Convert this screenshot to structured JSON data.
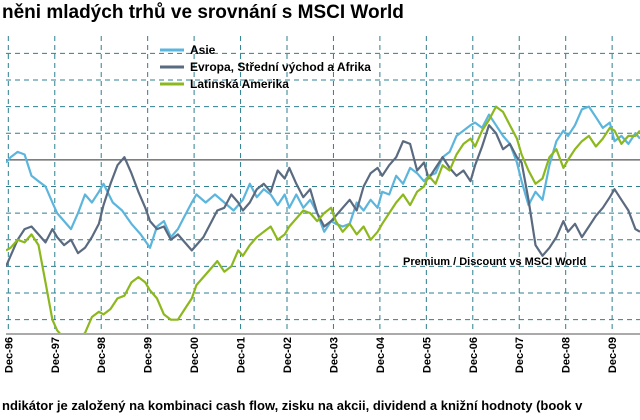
{
  "title": "něni mladých trhů ve srovnání s MSCI World",
  "footnote": "ndikátor je založený na kombinaci cash flow, zisku na akcii, dividend a knižní hodnoty (book v",
  "chart_data": {
    "type": "line",
    "annotation": "Premium / Discount vs MSCI World",
    "x_tick_labels": [
      "Dec-96",
      "Dec-97",
      "Dec-98",
      "Dec-99",
      "Dec-00",
      "Dec-01",
      "Dec-02",
      "Dec-03",
      "Dec-04",
      "Dec-05",
      "Dec-06",
      "Dec-07",
      "Dec-08",
      "Dec-09"
    ],
    "xlim": [
      1996.9,
      2010.55
    ],
    "ylim": [
      -6.5,
      4.5
    ],
    "baseline": 0,
    "grid": true,
    "legend_position": "top-left",
    "series": [
      {
        "name": "Asie",
        "color": "#5bb5dc",
        "x": [
          1996.9,
          1997.0,
          1997.15,
          1997.3,
          1997.45,
          1997.6,
          1997.75,
          1997.9,
          1998.0,
          1998.15,
          1998.3,
          1998.45,
          1998.6,
          1998.75,
          1998.9,
          1999.0,
          1999.2,
          1999.4,
          1999.6,
          1999.8,
          2000.0,
          2000.15,
          2000.3,
          2000.45,
          2000.6,
          2000.75,
          2000.9,
          2001.0,
          2001.2,
          2001.4,
          2001.6,
          2001.8,
          2002.0,
          2002.15,
          2002.3,
          2002.45,
          2002.6,
          2002.75,
          2002.9,
          2003.0,
          2003.15,
          2003.3,
          2003.45,
          2003.6,
          2003.75,
          2003.9,
          2004.0,
          2004.15,
          2004.3,
          2004.45,
          2004.6,
          2004.75,
          2004.9,
          2005.0,
          2005.15,
          2005.3,
          2005.45,
          2005.6,
          2005.75,
          2005.9,
          2006.0,
          2006.15,
          2006.3,
          2006.45,
          2006.6,
          2006.75,
          2006.9,
          2007.0,
          2007.15,
          2007.3,
          2007.45,
          2007.6,
          2007.75,
          2007.9,
          2008.0,
          2008.15,
          2008.3,
          2008.45,
          2008.6,
          2008.75,
          2008.9,
          2009.0,
          2009.15,
          2009.3,
          2009.45,
          2009.6,
          2009.75,
          2009.9,
          2010.0,
          2010.15,
          2010.3,
          2010.45,
          2010.55
        ],
        "values": [
          -0.1,
          0.1,
          0.3,
          0.2,
          -0.6,
          -0.8,
          -1.0,
          -1.6,
          -2.0,
          -2.3,
          -2.6,
          -2.0,
          -1.3,
          -1.6,
          -1.2,
          -0.9,
          -1.6,
          -1.9,
          -2.4,
          -2.8,
          -3.3,
          -2.5,
          -2.3,
          -2.9,
          -2.6,
          -2.1,
          -1.6,
          -1.3,
          -1.6,
          -1.3,
          -1.6,
          -1.9,
          -1.5,
          -0.9,
          -1.4,
          -1.1,
          -1.3,
          -1.7,
          -1.3,
          -1.8,
          -1.3,
          -1.8,
          -1.5,
          -2.0,
          -2.7,
          -2.3,
          -2.4,
          -2.5,
          -2.4,
          -1.6,
          -1.9,
          -1.5,
          -1.8,
          -1.2,
          -1.3,
          -0.6,
          -0.9,
          -0.3,
          -0.5,
          -0.8,
          -0.6,
          -0.5,
          0.1,
          0.3,
          0.9,
          1.1,
          1.3,
          1.4,
          1.2,
          1.7,
          1.3,
          0.9,
          0.6,
          -0.1,
          -0.8,
          -1.7,
          -1.2,
          -1.5,
          -0.2,
          0.7,
          1.1,
          0.9,
          1.3,
          1.9,
          2.0,
          1.6,
          1.2,
          1.4,
          0.7,
          0.9,
          0.6,
          1.0,
          0.8
        ]
      },
      {
        "name": "Evropa, Střední východ a Afrika",
        "color": "#5a6a80",
        "x": [
          1996.9,
          1997.0,
          1997.15,
          1997.3,
          1997.45,
          1997.6,
          1997.75,
          1997.9,
          1998.0,
          1998.15,
          1998.3,
          1998.45,
          1998.6,
          1998.75,
          1998.9,
          1999.0,
          1999.15,
          1999.3,
          1999.45,
          1999.6,
          1999.75,
          1999.9,
          2000.0,
          2000.15,
          2000.3,
          2000.45,
          2000.6,
          2000.75,
          2000.9,
          2001.0,
          2001.15,
          2001.3,
          2001.45,
          2001.6,
          2001.75,
          2001.9,
          2002.0,
          2002.15,
          2002.3,
          2002.45,
          2002.6,
          2002.75,
          2002.9,
          2003.0,
          2003.15,
          2003.3,
          2003.45,
          2003.6,
          2003.75,
          2003.9,
          2004.0,
          2004.15,
          2004.3,
          2004.45,
          2004.6,
          2004.75,
          2004.9,
          2005.0,
          2005.15,
          2005.3,
          2005.45,
          2005.6,
          2005.75,
          2005.9,
          2006.0,
          2006.15,
          2006.3,
          2006.45,
          2006.6,
          2006.75,
          2006.9,
          2007.0,
          2007.15,
          2007.3,
          2007.45,
          2007.6,
          2007.75,
          2007.9,
          2008.0,
          2008.15,
          2008.3,
          2008.45,
          2008.6,
          2008.75,
          2008.9,
          2009.0,
          2009.15,
          2009.3,
          2009.45,
          2009.6,
          2009.75,
          2009.9,
          2010.0,
          2010.15,
          2010.3,
          2010.45,
          2010.55
        ],
        "values": [
          -4.0,
          -3.6,
          -3.0,
          -2.6,
          -2.5,
          -2.8,
          -3.1,
          -2.6,
          -2.9,
          -3.2,
          -3.0,
          -3.5,
          -3.3,
          -2.9,
          -2.4,
          -1.7,
          -0.9,
          -0.2,
          0.1,
          -0.5,
          -1.2,
          -1.8,
          -2.3,
          -2.6,
          -2.5,
          -3.0,
          -2.8,
          -3.1,
          -3.4,
          -3.2,
          -2.9,
          -2.4,
          -1.9,
          -1.8,
          -1.3,
          -1.6,
          -1.9,
          -1.6,
          -1.1,
          -0.9,
          -1.2,
          -0.4,
          -0.7,
          -0.3,
          -0.9,
          -1.4,
          -1.1,
          -2.0,
          -2.5,
          -2.3,
          -2.1,
          -1.8,
          -1.5,
          -1.9,
          -1.0,
          -0.5,
          -0.3,
          -0.6,
          -0.2,
          0.1,
          0.7,
          0.6,
          -0.4,
          -0.1,
          -0.7,
          -0.3,
          0.1,
          -0.3,
          -0.6,
          -0.4,
          -0.8,
          -0.2,
          0.5,
          1.3,
          1.0,
          0.4,
          0.6,
          0.1,
          -0.1,
          -1.5,
          -3.2,
          -3.6,
          -3.3,
          -2.9,
          -2.3,
          -2.7,
          -2.4,
          -2.9,
          -2.5,
          -2.1,
          -1.8,
          -1.4,
          -1.1,
          -1.5,
          -1.9,
          -2.6,
          -2.7
        ]
      },
      {
        "name": "Latinská Amerika",
        "color": "#8cb81e",
        "x": [
          1996.9,
          1997.0,
          1997.15,
          1997.3,
          1997.45,
          1997.6,
          1997.75,
          1997.9,
          1998.0,
          1998.15,
          1998.3,
          1998.45,
          1998.6,
          1998.75,
          1998.9,
          1999.0,
          1999.15,
          1999.3,
          1999.45,
          1999.6,
          1999.75,
          1999.9,
          2000.0,
          2000.15,
          2000.3,
          2000.45,
          2000.6,
          2000.75,
          2000.9,
          2001.0,
          2001.15,
          2001.3,
          2001.45,
          2001.6,
          2001.75,
          2001.9,
          2002.0,
          2002.15,
          2002.3,
          2002.45,
          2002.6,
          2002.75,
          2002.9,
          2003.0,
          2003.15,
          2003.3,
          2003.45,
          2003.6,
          2003.75,
          2003.9,
          2004.0,
          2004.15,
          2004.3,
          2004.45,
          2004.6,
          2004.75,
          2004.9,
          2005.0,
          2005.15,
          2005.3,
          2005.45,
          2005.6,
          2005.75,
          2005.9,
          2006.0,
          2006.15,
          2006.3,
          2006.45,
          2006.6,
          2006.75,
          2006.9,
          2007.0,
          2007.15,
          2007.3,
          2007.45,
          2007.6,
          2007.75,
          2007.9,
          2008.0,
          2008.15,
          2008.3,
          2008.45,
          2008.6,
          2008.75,
          2008.9,
          2009.0,
          2009.15,
          2009.3,
          2009.45,
          2009.6,
          2009.75,
          2009.9,
          2010.0,
          2010.15,
          2010.3,
          2010.45,
          2010.55
        ],
        "values": [
          -3.4,
          -3.3,
          -3.0,
          -3.1,
          -2.8,
          -3.2,
          -4.6,
          -6.0,
          -6.4,
          -6.7,
          -6.6,
          -6.7,
          -6.5,
          -5.9,
          -5.7,
          -5.8,
          -5.6,
          -5.2,
          -5.1,
          -4.6,
          -4.4,
          -4.6,
          -4.9,
          -5.2,
          -5.8,
          -6.0,
          -6.0,
          -5.6,
          -5.2,
          -4.7,
          -4.4,
          -4.1,
          -3.8,
          -4.2,
          -4.0,
          -3.4,
          -3.6,
          -3.2,
          -2.9,
          -2.7,
          -2.5,
          -3.0,
          -2.8,
          -2.5,
          -2.2,
          -1.9,
          -2.0,
          -2.3,
          -2.0,
          -1.8,
          -2.3,
          -2.7,
          -2.4,
          -2.8,
          -2.5,
          -3.0,
          -2.7,
          -2.4,
          -2.0,
          -1.6,
          -1.3,
          -1.7,
          -1.2,
          -1.0,
          -0.6,
          -0.9,
          -0.2,
          -0.4,
          0.2,
          0.6,
          0.8,
          0.5,
          1.1,
          1.5,
          2.0,
          1.8,
          1.3,
          0.8,
          0.2,
          -0.4,
          -0.9,
          -0.7,
          0.1,
          0.4,
          -0.3,
          0.0,
          0.4,
          0.7,
          0.9,
          0.5,
          0.8,
          1.2,
          1.1,
          0.6,
          0.9,
          0.9,
          1.1
        ]
      }
    ]
  }
}
